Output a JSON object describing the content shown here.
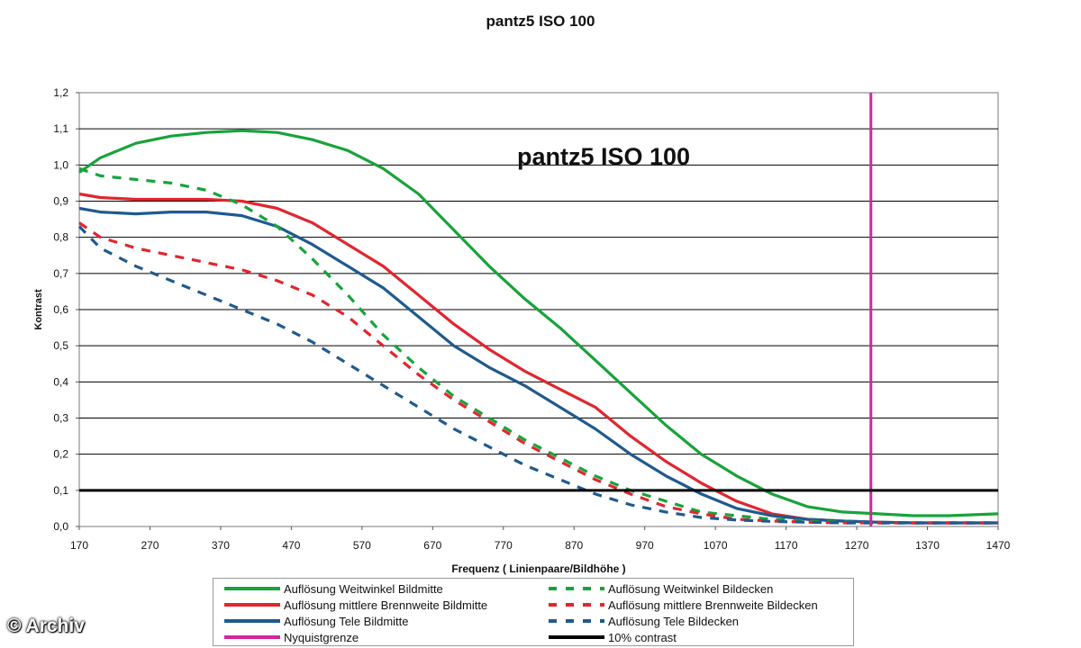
{
  "colors": {
    "green": "#18a33a",
    "red": "#e0262f",
    "blue": "#1f5a8e",
    "magenta": "#d6249f",
    "black": "#000000",
    "grid": "#000000"
  },
  "watermark": "© Archiv",
  "chart_data": {
    "type": "line",
    "title": "pantz5 ISO 100",
    "inner_title": "pantz5 ISO 100",
    "xlabel": "Frequenz ( Linienpaare/Bildhöhe )",
    "ylabel": "Kontrast",
    "xlim": [
      170,
      1470
    ],
    "ylim": [
      0,
      1.2
    ],
    "x_ticks": [
      "170",
      "270",
      "370",
      "470",
      "570",
      "670",
      "770",
      "870",
      "970",
      "1070",
      "1170",
      "1270",
      "1370",
      "1470"
    ],
    "y_ticks": [
      "0,0",
      "0,1",
      "0,2",
      "0,3",
      "0,4",
      "0,5",
      "0,6",
      "0,7",
      "0,8",
      "0,9",
      "1,0",
      "1,1",
      "1,2"
    ],
    "grid": "horizontal",
    "legend_position": "bottom",
    "series": [
      {
        "name": "Auflösung Weitwinkel Bildmitte",
        "color_key": "green",
        "style": "solid",
        "x": [
          170,
          200,
          250,
          300,
          350,
          400,
          450,
          500,
          550,
          600,
          650,
          700,
          750,
          800,
          850,
          900,
          950,
          1000,
          1050,
          1100,
          1150,
          1200,
          1250,
          1300,
          1350,
          1400,
          1470
        ],
        "y": [
          0.98,
          1.02,
          1.06,
          1.08,
          1.09,
          1.095,
          1.09,
          1.07,
          1.04,
          0.99,
          0.92,
          0.82,
          0.72,
          0.63,
          0.55,
          0.46,
          0.37,
          0.28,
          0.2,
          0.14,
          0.09,
          0.055,
          0.04,
          0.035,
          0.03,
          0.03,
          0.035
        ]
      },
      {
        "name": "Auflösung Weitwinkel Bildecken",
        "color_key": "green",
        "style": "dashed",
        "x": [
          170,
          200,
          250,
          300,
          350,
          400,
          450,
          500,
          550,
          600,
          650,
          700,
          750,
          800,
          850,
          900,
          950,
          1000,
          1050,
          1100,
          1150,
          1200,
          1250,
          1300,
          1350,
          1400,
          1470
        ],
        "y": [
          0.99,
          0.97,
          0.96,
          0.95,
          0.93,
          0.89,
          0.83,
          0.74,
          0.64,
          0.53,
          0.44,
          0.36,
          0.3,
          0.24,
          0.19,
          0.14,
          0.1,
          0.07,
          0.04,
          0.03,
          0.02,
          0.015,
          0.012,
          0.01,
          0.01,
          0.01,
          0.01
        ]
      },
      {
        "name": "Auflösung mittlere Brennweite Bildmitte",
        "color_key": "red",
        "style": "solid",
        "x": [
          170,
          200,
          250,
          300,
          350,
          400,
          450,
          500,
          550,
          600,
          650,
          700,
          750,
          800,
          850,
          900,
          950,
          1000,
          1050,
          1100,
          1150,
          1200,
          1250,
          1300,
          1350,
          1400,
          1470
        ],
        "y": [
          0.92,
          0.91,
          0.905,
          0.905,
          0.905,
          0.9,
          0.88,
          0.84,
          0.78,
          0.72,
          0.64,
          0.56,
          0.49,
          0.43,
          0.38,
          0.33,
          0.25,
          0.18,
          0.12,
          0.07,
          0.035,
          0.02,
          0.015,
          0.012,
          0.01,
          0.01,
          0.01
        ]
      },
      {
        "name": "Auflösung mittlere Brennweite Bildecken",
        "color_key": "red",
        "style": "dashed",
        "x": [
          170,
          200,
          250,
          300,
          350,
          400,
          450,
          500,
          550,
          600,
          650,
          700,
          750,
          800,
          850,
          900,
          950,
          1000,
          1050,
          1100,
          1150,
          1200,
          1250,
          1300,
          1350,
          1400,
          1470
        ],
        "y": [
          0.84,
          0.8,
          0.77,
          0.75,
          0.73,
          0.71,
          0.68,
          0.64,
          0.58,
          0.5,
          0.42,
          0.35,
          0.29,
          0.23,
          0.18,
          0.13,
          0.09,
          0.055,
          0.035,
          0.02,
          0.015,
          0.012,
          0.01,
          0.01,
          0.01,
          0.01,
          0.01
        ]
      },
      {
        "name": "Auflösung Tele Bildmitte",
        "color_key": "blue",
        "style": "solid",
        "x": [
          170,
          200,
          250,
          300,
          350,
          400,
          450,
          500,
          550,
          600,
          650,
          700,
          750,
          800,
          850,
          900,
          950,
          1000,
          1050,
          1100,
          1150,
          1200,
          1250,
          1300,
          1350,
          1400,
          1470
        ],
        "y": [
          0.88,
          0.87,
          0.865,
          0.87,
          0.87,
          0.86,
          0.83,
          0.78,
          0.72,
          0.66,
          0.58,
          0.5,
          0.44,
          0.39,
          0.33,
          0.27,
          0.2,
          0.14,
          0.09,
          0.05,
          0.03,
          0.02,
          0.015,
          0.012,
          0.01,
          0.01,
          0.01
        ]
      },
      {
        "name": "Auflösung Tele Bildecken",
        "color_key": "blue",
        "style": "dashed",
        "x": [
          170,
          200,
          250,
          300,
          350,
          400,
          450,
          500,
          550,
          600,
          650,
          700,
          750,
          800,
          850,
          900,
          950,
          1000,
          1050,
          1100,
          1150,
          1200,
          1250,
          1300,
          1350,
          1400,
          1470
        ],
        "y": [
          0.83,
          0.77,
          0.72,
          0.68,
          0.64,
          0.6,
          0.56,
          0.51,
          0.45,
          0.39,
          0.33,
          0.27,
          0.22,
          0.17,
          0.13,
          0.09,
          0.06,
          0.04,
          0.025,
          0.018,
          0.014,
          0.012,
          0.01,
          0.01,
          0.01,
          0.01,
          0.01
        ]
      }
    ],
    "reference_lines": [
      {
        "name": "Nyquistgrenze",
        "orientation": "vertical",
        "value": 1290,
        "color_key": "magenta"
      },
      {
        "name": "10% contrast",
        "orientation": "horizontal",
        "value": 0.1,
        "color_key": "black"
      }
    ],
    "legend": [
      {
        "label": "Auflösung Weitwinkel Bildmitte",
        "color_key": "green",
        "style": "solid"
      },
      {
        "label": "Auflösung Weitwinkel Bildecken",
        "color_key": "green",
        "style": "dashed"
      },
      {
        "label": "Auflösung mittlere Brennweite Bildmitte",
        "color_key": "red",
        "style": "solid"
      },
      {
        "label": "Auflösung mittlere Brennweite Bildecken",
        "color_key": "red",
        "style": "dashed"
      },
      {
        "label": "Auflösung Tele Bildmitte",
        "color_key": "blue",
        "style": "solid"
      },
      {
        "label": "Auflösung Tele Bildecken",
        "color_key": "blue",
        "style": "dashed"
      },
      {
        "label": "Nyquistgrenze",
        "color_key": "magenta",
        "style": "solid"
      },
      {
        "label": "10% contrast",
        "color_key": "black",
        "style": "solid"
      }
    ]
  }
}
